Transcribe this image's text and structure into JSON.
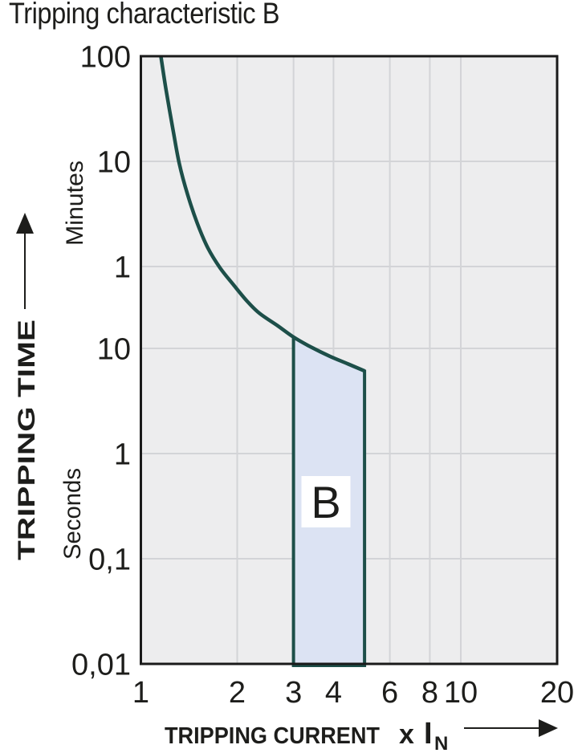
{
  "title": "Tripping characteristic B",
  "colors": {
    "background": "#ffffff",
    "plot_background": "#ededee",
    "gridline": "#d3d4d7",
    "plot_border": "#1a1a1a",
    "curve": "#1d4f49",
    "region_fill": "#dce3f3",
    "region_label_background": "#ffffff",
    "text": "#1d1d1b"
  },
  "chart_data": {
    "type": "line",
    "title": "Tripping characteristic B",
    "grid": true,
    "legend": "none",
    "x_axis": {
      "label": "TRIPPING CURRENT",
      "unit_multiplier": "x",
      "unit_symbol": "I",
      "unit_subscript": "N",
      "scale": "log",
      "range": [
        1,
        20
      ],
      "ticks": [
        {
          "label": "1",
          "value": 1
        },
        {
          "label": "2",
          "value": 2
        },
        {
          "label": "3",
          "value": 3
        },
        {
          "label": "4",
          "value": 4
        },
        {
          "label": "6",
          "value": 6
        },
        {
          "label": "8",
          "value": 8
        },
        {
          "label": "10",
          "value": 10
        },
        {
          "label": "20",
          "value": 20
        }
      ],
      "gridlines_at": [
        2,
        3,
        4,
        6,
        8,
        10
      ]
    },
    "y_axis": {
      "label": "TRIPPING TIME",
      "unit_top": "Minutes",
      "unit_bottom": "Seconds",
      "scale": "log",
      "range_seconds": [
        0.01,
        6000
      ],
      "ticks": [
        {
          "label": "100",
          "seconds": 6000,
          "unit": "minutes"
        },
        {
          "label": "10",
          "seconds": 600,
          "unit": "minutes"
        },
        {
          "label": "1",
          "seconds": 60,
          "unit": "minutes"
        },
        {
          "label": "10",
          "seconds": 10,
          "unit": "seconds"
        },
        {
          "label": "1",
          "seconds": 1,
          "unit": "seconds"
        },
        {
          "label": "0,1",
          "seconds": 0.1,
          "unit": "seconds"
        },
        {
          "label": "0,01",
          "seconds": 0.01,
          "unit": "seconds"
        }
      ],
      "gridlines_at_seconds": [
        600,
        60,
        10,
        1,
        0.1
      ]
    },
    "series": [
      {
        "name": "thermal-tripping-curve",
        "points_x_t": [
          [
            1.155,
            6000
          ],
          [
            1.2,
            2800
          ],
          [
            1.26,
            1200
          ],
          [
            1.32,
            560
          ],
          [
            1.4,
            290
          ],
          [
            1.5,
            155
          ],
          [
            1.62,
            90
          ],
          [
            1.77,
            58
          ],
          [
            1.95,
            40
          ],
          [
            2.15,
            28
          ],
          [
            2.35,
            21.5
          ],
          [
            2.67,
            16.5
          ],
          [
            3.0,
            12.8
          ],
          [
            3.4,
            10.3
          ],
          [
            3.9,
            8.4
          ],
          [
            4.45,
            7.1
          ],
          [
            5.0,
            6.1
          ]
        ]
      }
    ],
    "region": {
      "label": "B",
      "x_from": 3,
      "x_to": 5,
      "t_bottom": 0.01,
      "top_follows_curve": true
    }
  }
}
